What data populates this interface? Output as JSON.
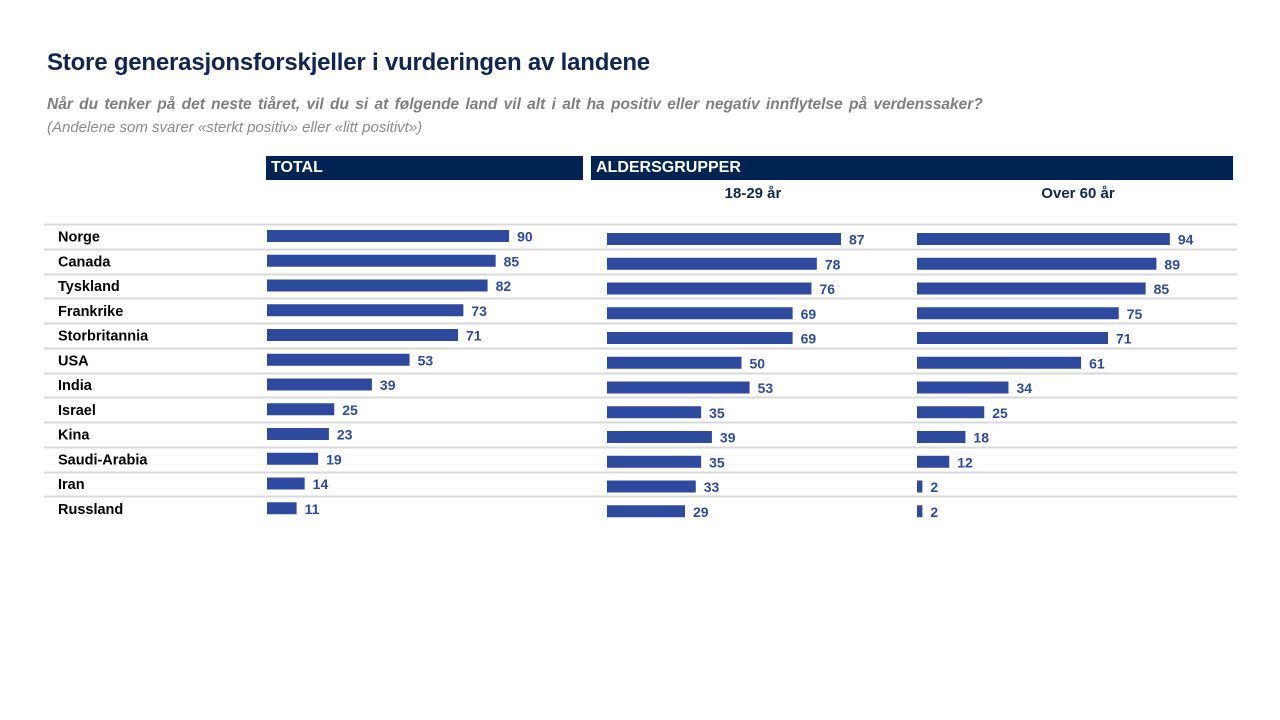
{
  "title": "Store generasjonsforskjeller  i vurderingen av landene",
  "question": "Når du tenker på det neste tiåret, vil du si at følgende  land vil alt i alt ha positiv  eller negativ  innflytelse  på verdenssaker?",
  "note": "(Andelene  som svarer «sterkt positiv» eller «litt positivt»)",
  "colors": {
    "header_bg": "#002451",
    "bar": "#2e4a9e",
    "value_label": "#2e4a9e",
    "gridline": "#d9d9d9",
    "title": "#0f2650"
  },
  "headers": {
    "total": "TOTAL",
    "age_groups": "ALDERSGRUPPER",
    "age_18_29": "18-29 år",
    "age_over_60": "Over 60 år"
  },
  "chart_data": {
    "type": "bar",
    "orientation": "horizontal",
    "title": "Store generasjonsforskjeller  i vurderingen av landene",
    "subtitle": "Når du tenker på det neste tiåret, vil du si at følgende  land vil alt i alt ha positiv  eller negativ  innflytelse  på verdenssaker? (Andelene  som svarer «sterkt positiv» eller «litt positivt»)",
    "xlabel": "",
    "ylabel": "",
    "xlim": [
      0,
      100
    ],
    "grid": "horizontal row separators",
    "legend": "none",
    "categories": [
      "Norge",
      "Canada",
      "Tyskland",
      "Frankrike",
      "Storbritannia",
      "USA",
      "India",
      "Israel",
      "Kina",
      "Saudi-Arabia",
      "Iran",
      "Russland"
    ],
    "series": [
      {
        "name": "TOTAL",
        "group": "TOTAL",
        "values": [
          90,
          85,
          82,
          73,
          71,
          53,
          39,
          25,
          23,
          19,
          14,
          11
        ]
      },
      {
        "name": "18-29 år",
        "group": "ALDERSGRUPPER",
        "values": [
          87,
          78,
          76,
          69,
          69,
          50,
          53,
          35,
          39,
          35,
          33,
          29
        ]
      },
      {
        "name": "Over 60 år",
        "group": "ALDERSGRUPPER",
        "values": [
          94,
          89,
          85,
          75,
          71,
          61,
          34,
          25,
          18,
          12,
          2,
          2
        ]
      }
    ]
  }
}
